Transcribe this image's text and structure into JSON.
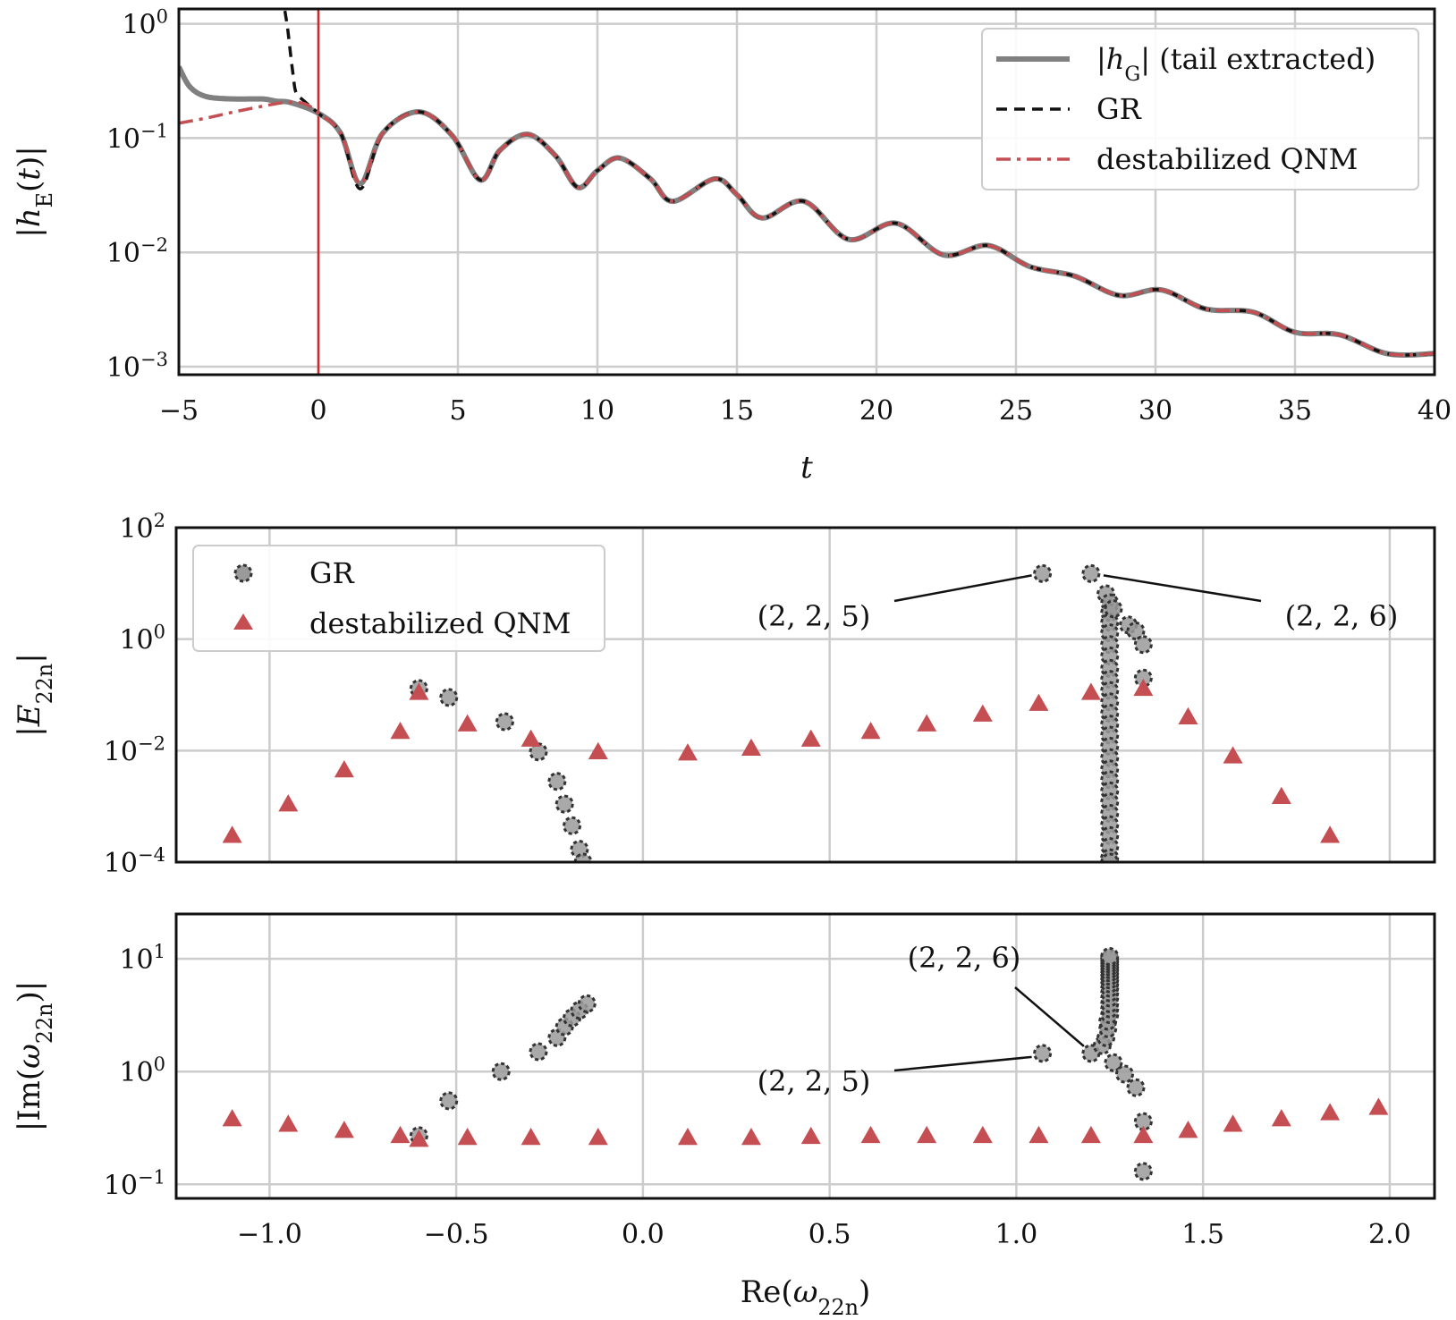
{
  "chart_data": [
    {
      "type": "line",
      "panel": "top",
      "title": "",
      "xlabel": "t",
      "ylabel": "|h_E(t)|",
      "yscale": "log",
      "xlim": [
        -5,
        40
      ],
      "ylim": [
        0.00085,
        1.35
      ],
      "xticks": [
        -5,
        0,
        5,
        10,
        15,
        20,
        25,
        30,
        35,
        40
      ],
      "xtick_labels": [
        "−5",
        "0",
        "5",
        "10",
        "15",
        "20",
        "25",
        "30",
        "35",
        "40"
      ],
      "ytick_exponents": [
        0,
        -1,
        -2,
        -3
      ],
      "vline_x": 0,
      "legend": [
        "|h_G| (tail extracted)",
        "GR",
        "destabilized QNM"
      ],
      "legend_position": "top-right",
      "series": [
        {
          "name": "|h_G| (tail extracted)",
          "color": "#808080",
          "style": "solid",
          "x": [
            -5,
            -4.6,
            -4,
            -3,
            -2,
            -1.5,
            -1,
            0,
            0.8,
            1.5,
            2.3,
            3.6,
            4.8,
            5.8,
            6.5,
            7.5,
            8.5,
            9.3,
            10,
            10.8,
            11.9,
            12.7,
            14.2,
            15.0,
            15.9,
            17.4,
            19.0,
            20.7,
            22.4,
            24.0,
            25.5,
            27.1,
            28.7,
            30.2,
            31.8,
            33.5,
            35.0,
            36.6,
            38.3,
            40
          ],
          "y": [
            0.42,
            0.28,
            0.23,
            0.22,
            0.22,
            0.21,
            0.205,
            0.165,
            0.11,
            0.04,
            0.11,
            0.17,
            0.105,
            0.043,
            0.078,
            0.108,
            0.07,
            0.037,
            0.052,
            0.067,
            0.044,
            0.028,
            0.044,
            0.032,
            0.02,
            0.028,
            0.013,
            0.018,
            0.0095,
            0.0115,
            0.0075,
            0.0062,
            0.0042,
            0.0047,
            0.0032,
            0.003,
            0.002,
            0.0019,
            0.0013,
            0.0013
          ]
        },
        {
          "name": "GR",
          "color": "#111111",
          "style": "dashed",
          "x": [
            -1.2,
            -1.1,
            -1.0,
            -0.9,
            -0.8,
            -0.5,
            0,
            0.8,
            1.5,
            2.3,
            3.6,
            4.8,
            5.8,
            6.5,
            7.5,
            8.5,
            9.3,
            10,
            10.8,
            11.9,
            12.7,
            14.2,
            15.0,
            15.9,
            17.4,
            19.0,
            20.7,
            22.4,
            24.0,
            25.5,
            27.1,
            28.7,
            30.2,
            31.8,
            33.5,
            35.0,
            36.6,
            38.3,
            40
          ],
          "y": [
            1.3,
            0.9,
            0.55,
            0.35,
            0.25,
            0.21,
            0.165,
            0.11,
            0.036,
            0.11,
            0.17,
            0.105,
            0.043,
            0.078,
            0.108,
            0.07,
            0.037,
            0.052,
            0.067,
            0.044,
            0.028,
            0.044,
            0.032,
            0.02,
            0.028,
            0.013,
            0.018,
            0.0095,
            0.0115,
            0.0075,
            0.0062,
            0.0042,
            0.0047,
            0.0032,
            0.003,
            0.002,
            0.0019,
            0.0013,
            0.0013
          ]
        },
        {
          "name": "destabilized QNM",
          "color": "#c44e52",
          "style": "dashdot",
          "x": [
            -5,
            -4,
            -3,
            -2,
            -1.2,
            -0.5,
            0,
            0.8,
            1.5,
            2.3,
            3.6,
            4.8,
            5.8,
            6.5,
            7.5,
            8.5,
            9.3,
            10,
            10.8,
            11.9,
            12.7,
            14.2,
            15.0,
            15.9,
            17.4,
            19.0,
            20.7,
            22.4,
            24.0,
            25.5,
            27.1,
            28.7,
            30.2,
            31.8,
            33.5,
            35.0,
            36.6,
            38.3,
            40
          ],
          "y": [
            0.135,
            0.15,
            0.17,
            0.19,
            0.205,
            0.2,
            0.165,
            0.11,
            0.04,
            0.11,
            0.17,
            0.105,
            0.043,
            0.078,
            0.108,
            0.07,
            0.037,
            0.052,
            0.067,
            0.044,
            0.028,
            0.044,
            0.032,
            0.02,
            0.028,
            0.013,
            0.018,
            0.0095,
            0.0115,
            0.0075,
            0.0062,
            0.0042,
            0.0047,
            0.0032,
            0.003,
            0.002,
            0.0019,
            0.0013,
            0.0013
          ]
        }
      ]
    },
    {
      "type": "scatter",
      "panel": "middle",
      "xlabel": "",
      "ylabel": "|E_22n|",
      "yscale": "log",
      "xlim": [
        -1.25,
        2.12
      ],
      "ylim": [
        0.0001,
        100
      ],
      "ytick_exponents": [
        2,
        0,
        -2,
        -4
      ],
      "legend": [
        "GR",
        "destabilized QNM"
      ],
      "legend_position": "top-left",
      "series": [
        {
          "name": "GR",
          "marker": "circle",
          "color": "#888888",
          "x": [
            -0.6,
            -0.52,
            -0.37,
            -0.28,
            -0.23,
            -0.21,
            -0.19,
            -0.17,
            -0.16,
            1.07,
            1.2,
            1.24,
            1.25,
            1.25,
            1.25,
            1.25,
            1.25,
            1.25,
            1.25,
            1.25,
            1.25,
            1.25,
            1.25,
            1.25,
            1.25,
            1.25,
            1.25,
            1.25,
            1.25,
            1.25,
            1.25,
            1.25,
            1.25,
            1.25,
            1.25,
            1.25,
            1.25,
            1.26,
            1.3,
            1.32,
            1.34,
            1.34
          ],
          "y": [
            0.13,
            0.09,
            0.033,
            0.0095,
            0.0028,
            0.0011,
            0.00045,
            0.00017,
            0.0001,
            15,
            15,
            6.5,
            4.5,
            3,
            2,
            1.3,
            0.8,
            0.5,
            0.3,
            0.19,
            0.12,
            0.075,
            0.047,
            0.03,
            0.019,
            0.012,
            0.0075,
            0.0047,
            0.003,
            0.0019,
            0.0012,
            0.00075,
            0.00047,
            0.0003,
            0.00019,
            0.00012,
            0.0001,
            3.5,
            1.8,
            1.4,
            0.8,
            0.2
          ],
          "annotations": [
            {
              "label": "(2, 2, 5)",
              "x": 1.07,
              "y": 15
            },
            {
              "label": "(2, 2, 6)",
              "x": 1.2,
              "y": 15
            }
          ]
        },
        {
          "name": "destabilized QNM",
          "marker": "triangle",
          "color": "#c44e52",
          "x": [
            -1.1,
            -0.95,
            -0.8,
            -0.65,
            -0.6,
            -0.47,
            -0.3,
            -0.12,
            0.12,
            0.29,
            0.45,
            0.61,
            0.76,
            0.91,
            1.06,
            1.2,
            1.34,
            1.46,
            1.58,
            1.71,
            1.84
          ],
          "y": [
            0.0003,
            0.0011,
            0.0045,
            0.022,
            0.11,
            0.03,
            0.016,
            0.0095,
            0.009,
            0.011,
            0.016,
            0.022,
            0.03,
            0.045,
            0.07,
            0.11,
            0.13,
            0.04,
            0.008,
            0.0015,
            0.0003
          ]
        }
      ]
    },
    {
      "type": "scatter",
      "panel": "bottom",
      "xlabel": "Re(ω_22n)",
      "ylabel": "|Im(ω_22n)|",
      "yscale": "log",
      "xlim": [
        -1.25,
        2.12
      ],
      "ylim": [
        0.075,
        25
      ],
      "xticks": [
        -1.0,
        -0.5,
        0.0,
        0.5,
        1.0,
        1.5,
        2.0
      ],
      "xtick_labels": [
        "−1.0",
        "−0.5",
        "0.0",
        "0.5",
        "1.0",
        "1.5",
        "2.0"
      ],
      "ytick_exponents": [
        1,
        0,
        -1
      ],
      "series": [
        {
          "name": "GR",
          "marker": "circle",
          "color": "#888888",
          "x": [
            -0.6,
            -0.52,
            -0.38,
            -0.28,
            -0.23,
            -0.21,
            -0.19,
            -0.17,
            -0.15,
            1.07,
            1.2,
            1.23,
            1.24,
            1.245,
            1.245,
            1.25,
            1.25,
            1.25,
            1.25,
            1.25,
            1.25,
            1.25,
            1.25,
            1.25,
            1.25,
            1.25,
            1.25,
            1.25,
            1.25,
            1.25,
            1.25,
            1.26,
            1.29,
            1.32,
            1.34,
            1.34
          ],
          "y": [
            0.27,
            0.55,
            1.0,
            1.5,
            2.0,
            2.5,
            3.0,
            3.5,
            4.0,
            1.45,
            1.45,
            1.7,
            2.0,
            2.4,
            2.8,
            3.2,
            3.6,
            4.0,
            4.5,
            5.0,
            5.5,
            6.0,
            6.5,
            7.0,
            7.5,
            8.0,
            8.5,
            9.0,
            9.5,
            10.0,
            10.5,
            1.2,
            0.95,
            0.72,
            0.36,
            0.13
          ],
          "annotations": [
            {
              "label": "(2, 2, 6)",
              "x": 1.2,
              "y": 1.45
            },
            {
              "label": "(2, 2, 5)",
              "x": 1.07,
              "y": 1.45
            }
          ]
        },
        {
          "name": "destabilized QNM",
          "marker": "triangle",
          "color": "#c44e52",
          "x": [
            -1.1,
            -0.95,
            -0.8,
            -0.65,
            -0.6,
            -0.47,
            -0.3,
            -0.12,
            0.12,
            0.29,
            0.45,
            0.61,
            0.76,
            0.91,
            1.06,
            1.2,
            1.34,
            1.46,
            1.58,
            1.71,
            1.84,
            1.97
          ],
          "y": [
            0.38,
            0.34,
            0.3,
            0.27,
            0.25,
            0.26,
            0.26,
            0.26,
            0.26,
            0.26,
            0.265,
            0.27,
            0.27,
            0.27,
            0.27,
            0.27,
            0.27,
            0.3,
            0.34,
            0.38,
            0.43,
            0.48
          ]
        }
      ]
    }
  ]
}
